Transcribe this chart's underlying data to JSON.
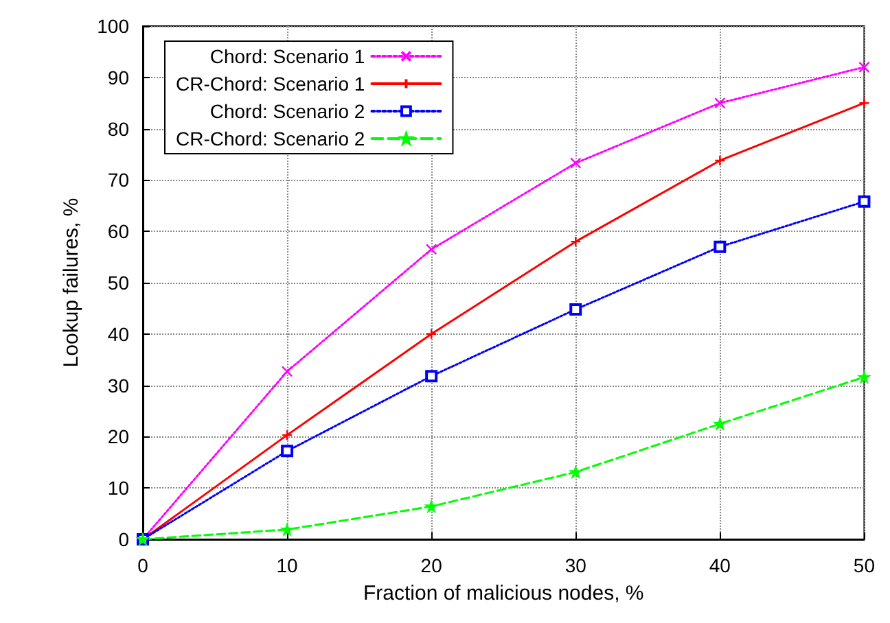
{
  "chart_data": {
    "type": "line",
    "xlabel": "Fraction of malicious nodes, %",
    "ylabel": "Lookup failures, %",
    "x": [
      0,
      10,
      20,
      30,
      40,
      50
    ],
    "xlim": [
      0,
      50
    ],
    "xticks": [
      0,
      10,
      20,
      30,
      40,
      50
    ],
    "ylim": [
      0,
      100
    ],
    "yticks": [
      0,
      10,
      20,
      30,
      40,
      50,
      60,
      70,
      80,
      90,
      100
    ],
    "grid": true,
    "legend": "top left",
    "series": [
      {
        "name": "Chord: Scenario 1",
        "color": "#ff00ff",
        "marker": "cross",
        "line_style": "dotted",
        "values": [
          0,
          32.7,
          56.5,
          73.3,
          85,
          92
        ]
      },
      {
        "name": "CR-Chord: Scenario 1",
        "color": "#ff0000",
        "marker": "plus",
        "line_style": "solid",
        "values": [
          0,
          20.3,
          40,
          58,
          73.8,
          85
        ]
      },
      {
        "name": "Chord: Scenario 2",
        "color": "#0000ff",
        "marker": "square",
        "line_style": "dotted",
        "values": [
          0,
          17.2,
          31.8,
          44.8,
          57,
          65.8
        ]
      },
      {
        "name": "CR-Chord: Scenario 2",
        "color": "#00ff00",
        "marker": "star",
        "line_style": "dashed",
        "values": [
          0,
          1.9,
          6.4,
          13.1,
          22.5,
          31.6
        ]
      }
    ]
  }
}
